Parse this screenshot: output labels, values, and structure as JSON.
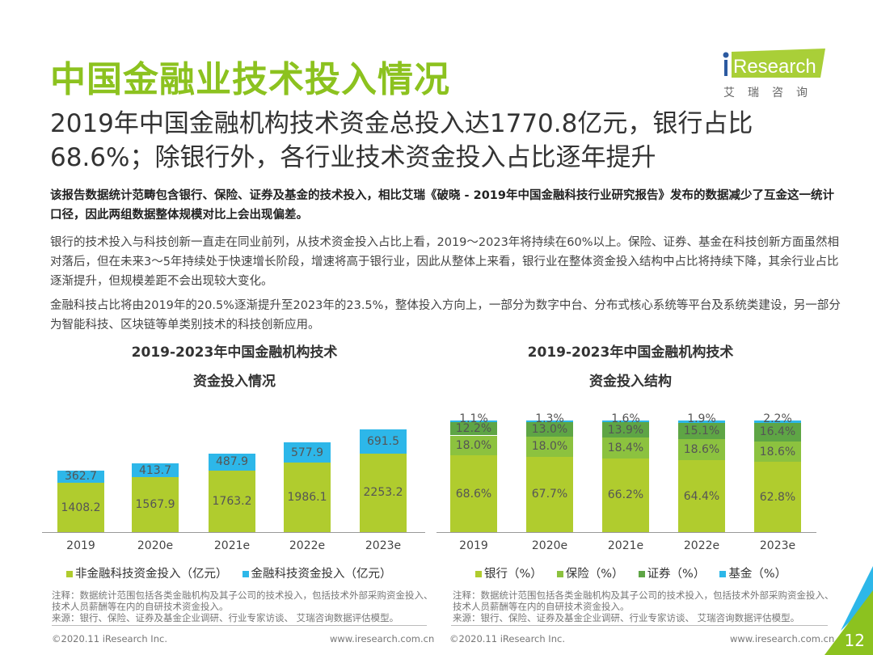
{
  "title": "中国金融业技术投入情况",
  "subtitle": "2019年中国金融机构技术资金总投入达1770.8亿元，银行占比68.6%；除银行外，各行业技术资金投入占比逐年提升",
  "lead": "该报告数据统计范畴包含银行、保险、证券及基金的技术投入，相比艾瑞《破晓 - 2019年中国金融科技行业研究报告》发布的数据减少了互金这一统计口径，因此两组数据整体规模对比上会出现偏差。",
  "paragraphs": [
    "银行的技术投入与科技创新一直走在同业前列，从技术资金投入占比上看，2019～2023年将持续在60%以上。保险、证券、基金在科技创新方面虽然相对落后，但在未来3～5年持续处于快速增长阶段，增速将高于银行业，因此从整体上来看，银行业在整体资金投入结构中占比将持续下降，其余行业占比逐渐提升，但规模差距不会出现较大变化。",
    "金融科技占比将由2019年的20.5%逐渐提升至2023年的23.5%，整体投入方向上，一部分为数字中台、分布式核心系统等平台及系统类建设，另一部分为智能科技、区块链等单类别技术的科技创新应用。"
  ],
  "logo": {
    "text": "iResearch",
    "cn": "艾瑞咨询"
  },
  "page_number": "12",
  "chart_data": [
    {
      "type": "bar",
      "stacked": true,
      "title_lines": [
        "2019-2023年中国金融机构技术",
        "资金投入情况"
      ],
      "categories": [
        "2019",
        "2020e",
        "2021e",
        "2022e",
        "2023e"
      ],
      "series": [
        {
          "name": "非金融科技资金投入（亿元）",
          "color": "#b0cc2e",
          "values": [
            1408.2,
            1567.9,
            1763.2,
            1986.1,
            2253.2
          ]
        },
        {
          "name": "金融科技资金投入（亿元）",
          "color": "#2db7e9",
          "values": [
            362.7,
            413.7,
            487.9,
            577.9,
            691.5
          ]
        }
      ],
      "note": "注释：数据统计范围包括各类金融机构及其子公司的技术投入，包括技术外部采购资金投入、技术人员薪酬等在内的自研技术资金投入。",
      "source": "来源：银行、保险、证券及基金企业调研、行业专家访谈、 艾瑞咨询数据评估模型。",
      "footer_left": "©2020.11 iResearch Inc.",
      "footer_right": "www.iresearch.com.cn"
    },
    {
      "type": "bar",
      "stacked": true,
      "percent": true,
      "title_lines": [
        "2019-2023年中国金融机构技术",
        "资金投入结构"
      ],
      "categories": [
        "2019",
        "2020e",
        "2021e",
        "2022e",
        "2023e"
      ],
      "series": [
        {
          "name": "银行（%）",
          "color": "#b0cc2e",
          "values": [
            68.6,
            67.7,
            66.2,
            64.4,
            62.8
          ]
        },
        {
          "name": "保险（%）",
          "color": "#8cc23f",
          "values": [
            18.0,
            18.0,
            18.4,
            18.6,
            18.6
          ]
        },
        {
          "name": "证券（%）",
          "color": "#5ea545",
          "values": [
            12.2,
            13.0,
            13.9,
            15.1,
            16.4
          ]
        },
        {
          "name": "基金（%）",
          "color": "#2db7e9",
          "values": [
            1.1,
            1.3,
            1.6,
            1.9,
            2.2
          ]
        }
      ],
      "note": "注释：数据统计范围包括各类金融机构及其子公司的技术投入，包括技术外部采购资金投入、技术人员薪酬等在内的自研技术资金投入。",
      "source": "来源：银行、保险、证券及基金企业调研、行业专家访谈、 艾瑞咨询数据评估模型。",
      "footer_left": "©2020.11 iResearch Inc.",
      "footer_right": "www.iresearch.com.cn"
    }
  ]
}
